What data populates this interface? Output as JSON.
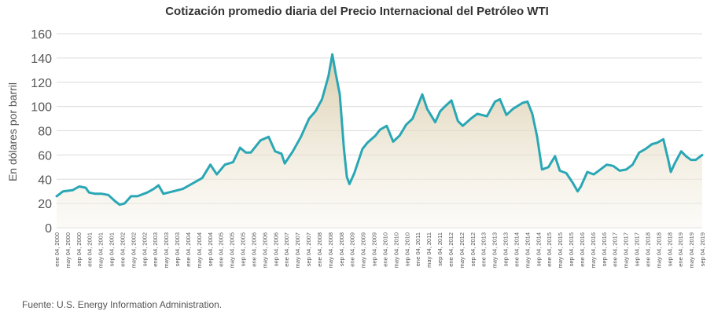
{
  "chart_data": {
    "type": "area",
    "title": "Cotización promedio diaria del Precio Internacional del Petróleo WTI",
    "ylabel": "En dólares por barril",
    "xlabel": "",
    "ylim": [
      0,
      160
    ],
    "yticks": [
      0,
      20,
      40,
      60,
      80,
      100,
      120,
      140,
      160
    ],
    "grid": "horizontal",
    "line_color": "#2aa7b5",
    "fill_color": "#e9e1cf",
    "x_labels": [
      "ene 04, 2000",
      "may 04, 2000",
      "sep 04, 2000",
      "ene 04, 2001",
      "may 04, 2001",
      "sep 04, 2001",
      "ene 04, 2002",
      "may 04, 2002",
      "sep 04, 2002",
      "ene 04, 2003",
      "may 04, 2003",
      "sep 04, 2003",
      "ene 04, 2004",
      "may 04, 2004",
      "sep 04, 2004",
      "ene 04, 2005",
      "may 04, 2005",
      "sep 04, 2005",
      "ene 04, 2006",
      "may 04, 2006",
      "sep 04, 2006",
      "ene 04, 2007",
      "may 04, 2007",
      "sep 04, 2007",
      "ene 04, 2008",
      "may 04, 2008",
      "sep 04, 2008",
      "ene 04, 2009",
      "may 04, 2009",
      "sep 04, 2009",
      "ene 04, 2010",
      "may 04, 2010",
      "sep 04, 2010",
      "ene 04, 2011",
      "may 04, 2011",
      "sep 04, 2011",
      "ene 04, 2012",
      "may 04, 2012",
      "sep 04, 2012",
      "ene 04, 2013",
      "may 04, 2013",
      "sep 04, 2013",
      "ene 04, 2014",
      "may 04, 2014",
      "sep 04, 2014",
      "ene 04, 2015",
      "may 04, 2015",
      "sep 04, 2015",
      "ene 04, 2016",
      "may 04, 2016",
      "sep 04, 2016",
      "ene 04, 2017",
      "may 04, 2017",
      "sep 04, 2017",
      "ene 04, 2018",
      "may 04, 2018",
      "sep 04, 2018",
      "ene 04, 2019",
      "may 04, 2019",
      "sep 04, 2019"
    ],
    "series": [
      {
        "values": [
          [
            2000.0,
            26
          ],
          [
            2000.2,
            30
          ],
          [
            2000.5,
            31
          ],
          [
            2000.7,
            34
          ],
          [
            2000.9,
            33
          ],
          [
            2001.0,
            29
          ],
          [
            2001.2,
            28
          ],
          [
            2001.4,
            28
          ],
          [
            2001.6,
            27
          ],
          [
            2001.8,
            22
          ],
          [
            2001.95,
            19
          ],
          [
            2002.1,
            20
          ],
          [
            2002.3,
            26
          ],
          [
            2002.5,
            26
          ],
          [
            2002.8,
            29
          ],
          [
            2003.0,
            32
          ],
          [
            2003.15,
            35
          ],
          [
            2003.3,
            28
          ],
          [
            2003.6,
            30
          ],
          [
            2003.9,
            32
          ],
          [
            2004.1,
            35
          ],
          [
            2004.3,
            38
          ],
          [
            2004.5,
            41
          ],
          [
            2004.75,
            52
          ],
          [
            2004.95,
            44
          ],
          [
            2005.2,
            52
          ],
          [
            2005.45,
            54
          ],
          [
            2005.67,
            66
          ],
          [
            2005.85,
            62
          ],
          [
            2006.0,
            62
          ],
          [
            2006.3,
            72
          ],
          [
            2006.55,
            75
          ],
          [
            2006.75,
            63
          ],
          [
            2006.95,
            61
          ],
          [
            2007.05,
            53
          ],
          [
            2007.3,
            63
          ],
          [
            2007.55,
            75
          ],
          [
            2007.8,
            90
          ],
          [
            2008.0,
            96
          ],
          [
            2008.2,
            106
          ],
          [
            2008.4,
            125
          ],
          [
            2008.52,
            143
          ],
          [
            2008.62,
            128
          ],
          [
            2008.75,
            110
          ],
          [
            2008.88,
            65
          ],
          [
            2008.97,
            42
          ],
          [
            2009.05,
            36
          ],
          [
            2009.2,
            45
          ],
          [
            2009.45,
            65
          ],
          [
            2009.6,
            70
          ],
          [
            2009.85,
            76
          ],
          [
            2010.0,
            81
          ],
          [
            2010.2,
            84
          ],
          [
            2010.4,
            71
          ],
          [
            2010.6,
            76
          ],
          [
            2010.8,
            85
          ],
          [
            2011.0,
            90
          ],
          [
            2011.15,
            100
          ],
          [
            2011.3,
            110
          ],
          [
            2011.45,
            98
          ],
          [
            2011.7,
            87
          ],
          [
            2011.85,
            96
          ],
          [
            2012.0,
            100
          ],
          [
            2012.2,
            105
          ],
          [
            2012.4,
            88
          ],
          [
            2012.55,
            84
          ],
          [
            2012.8,
            90
          ],
          [
            2013.0,
            94
          ],
          [
            2013.3,
            92
          ],
          [
            2013.55,
            104
          ],
          [
            2013.7,
            106
          ],
          [
            2013.9,
            93
          ],
          [
            2014.1,
            98
          ],
          [
            2014.4,
            103
          ],
          [
            2014.55,
            104
          ],
          [
            2014.7,
            94
          ],
          [
            2014.85,
            75
          ],
          [
            2015.0,
            48
          ],
          [
            2015.2,
            50
          ],
          [
            2015.4,
            59
          ],
          [
            2015.55,
            47
          ],
          [
            2015.75,
            45
          ],
          [
            2015.95,
            37
          ],
          [
            2016.1,
            30
          ],
          [
            2016.2,
            34
          ],
          [
            2016.4,
            46
          ],
          [
            2016.6,
            44
          ],
          [
            2016.8,
            48
          ],
          [
            2017.0,
            52
          ],
          [
            2017.2,
            51
          ],
          [
            2017.4,
            47
          ],
          [
            2017.6,
            48
          ],
          [
            2017.8,
            52
          ],
          [
            2018.0,
            62
          ],
          [
            2018.2,
            65
          ],
          [
            2018.4,
            69
          ],
          [
            2018.55,
            70
          ],
          [
            2018.75,
            73
          ],
          [
            2018.9,
            56
          ],
          [
            2018.98,
            46
          ],
          [
            2019.1,
            53
          ],
          [
            2019.3,
            63
          ],
          [
            2019.45,
            59
          ],
          [
            2019.6,
            56
          ],
          [
            2019.75,
            56
          ],
          [
            2019.95,
            60
          ]
        ]
      }
    ],
    "source": "Fuente: U.S. Energy Information Administration."
  }
}
